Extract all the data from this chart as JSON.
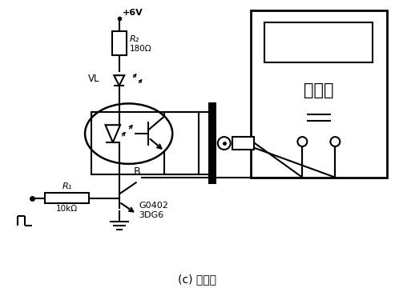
{
  "title": "(c) 电路三",
  "vcc_label": "+6V",
  "r2_label": "R₂",
  "r2_value": "180Ω",
  "vl_label": "VL",
  "r1_label": "R₁",
  "r1_value": "10kΩ",
  "b_label": "B",
  "g_label": "G0402",
  "tr_label": "3DG6",
  "counter_label": "计算器",
  "bg_color": "#ffffff",
  "line_color": "#000000"
}
